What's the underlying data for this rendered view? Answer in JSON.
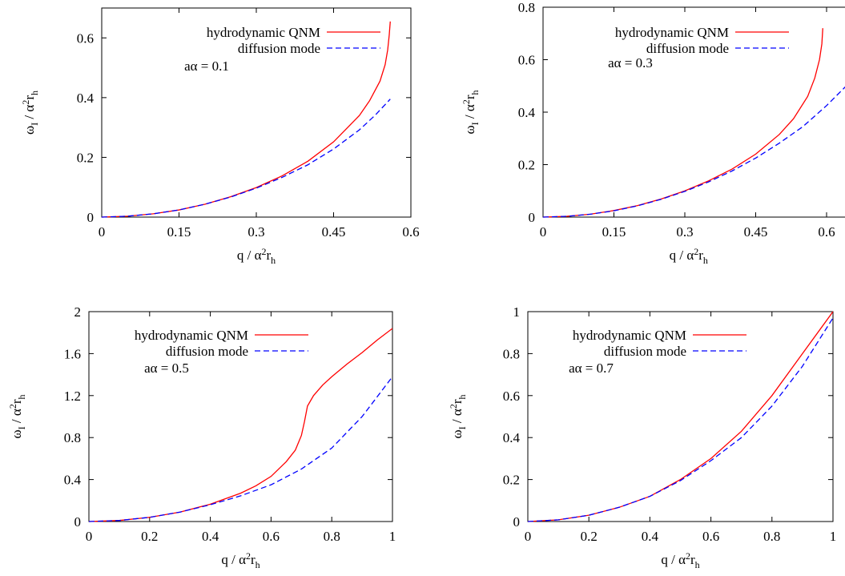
{
  "chart_data": [
    {
      "type": "line",
      "xlabel": [
        "q / α",
        "2",
        "r",
        "h"
      ],
      "ylabel": [
        "ω",
        "I",
        " / α",
        "2",
        "r",
        "h"
      ],
      "annotation": "aα = 0.1",
      "xlim": [
        0,
        0.6
      ],
      "xticks": [
        0,
        0.15,
        0.3,
        0.45,
        0.6
      ],
      "ylim": [
        0,
        0.7
      ],
      "yticks": [
        0,
        0.2,
        0.4,
        0.6
      ],
      "series": [
        {
          "name": "hydrodynamic QNM",
          "color": "#ff0000",
          "dash": false,
          "x": [
            0,
            0.05,
            0.1,
            0.15,
            0.2,
            0.25,
            0.3,
            0.35,
            0.4,
            0.45,
            0.5,
            0.52,
            0.54,
            0.55,
            0.555,
            0.558,
            0.56
          ],
          "values": [
            0,
            0.003,
            0.011,
            0.024,
            0.043,
            0.068,
            0.099,
            0.138,
            0.187,
            0.252,
            0.34,
            0.39,
            0.455,
            0.51,
            0.56,
            0.61,
            0.655
          ]
        },
        {
          "name": "diffusion mode",
          "color": "#0000ff",
          "dash": true,
          "x": [
            0,
            0.05,
            0.1,
            0.15,
            0.2,
            0.25,
            0.3,
            0.35,
            0.4,
            0.45,
            0.5,
            0.53,
            0.56
          ],
          "values": [
            0,
            0.003,
            0.011,
            0.024,
            0.043,
            0.067,
            0.097,
            0.133,
            0.175,
            0.228,
            0.292,
            0.34,
            0.395
          ]
        }
      ]
    },
    {
      "type": "line",
      "xlabel": [
        "q / α",
        "2",
        "r",
        "h"
      ],
      "ylabel": [
        "ω",
        "I",
        " / α",
        "2",
        "r",
        "h"
      ],
      "annotation": "aα = 0.3",
      "xlim": [
        0,
        0.65
      ],
      "xticks": [
        0,
        0.15,
        0.3,
        0.45,
        0.6
      ],
      "ylim": [
        0,
        0.8
      ],
      "yticks": [
        0,
        0.2,
        0.4,
        0.6,
        0.8
      ],
      "series": [
        {
          "name": "hydrodynamic QNM",
          "color": "#ff0000",
          "dash": false,
          "x": [
            0,
            0.05,
            0.1,
            0.15,
            0.2,
            0.25,
            0.3,
            0.35,
            0.4,
            0.45,
            0.5,
            0.53,
            0.56,
            0.575,
            0.585,
            0.59,
            0.592
          ],
          "values": [
            0,
            0.003,
            0.011,
            0.025,
            0.044,
            0.069,
            0.1,
            0.138,
            0.183,
            0.24,
            0.315,
            0.375,
            0.46,
            0.53,
            0.6,
            0.66,
            0.72
          ]
        },
        {
          "name": "diffusion mode",
          "color": "#0000ff",
          "dash": true,
          "x": [
            0,
            0.05,
            0.1,
            0.15,
            0.2,
            0.25,
            0.3,
            0.35,
            0.4,
            0.45,
            0.5,
            0.55,
            0.6,
            0.65
          ],
          "values": [
            0,
            0.003,
            0.011,
            0.024,
            0.043,
            0.068,
            0.098,
            0.134,
            0.176,
            0.225,
            0.282,
            0.345,
            0.425,
            0.515
          ]
        }
      ]
    },
    {
      "type": "line",
      "xlabel": [
        "q / α",
        "2",
        "r",
        "h"
      ],
      "ylabel": [
        "ω",
        "I",
        " / α",
        "2",
        "r",
        "h"
      ],
      "annotation": "aα = 0.5",
      "xlim": [
        0,
        1
      ],
      "xticks": [
        0,
        0.2,
        0.4,
        0.6,
        0.8,
        1
      ],
      "ylim": [
        0,
        2
      ],
      "yticks": [
        0,
        0.4,
        0.8,
        1.2,
        1.6,
        2
      ],
      "series": [
        {
          "name": "hydrodynamic QNM",
          "color": "#ff0000",
          "dash": false,
          "x": [
            0,
            0.1,
            0.2,
            0.3,
            0.4,
            0.5,
            0.55,
            0.6,
            0.65,
            0.68,
            0.7,
            0.71,
            0.72,
            0.74,
            0.77,
            0.8,
            0.85,
            0.9,
            0.95,
            1
          ],
          "values": [
            0,
            0.01,
            0.04,
            0.09,
            0.165,
            0.27,
            0.34,
            0.43,
            0.57,
            0.68,
            0.82,
            0.95,
            1.1,
            1.2,
            1.3,
            1.38,
            1.5,
            1.61,
            1.73,
            1.84
          ]
        },
        {
          "name": "diffusion mode",
          "color": "#0000ff",
          "dash": true,
          "x": [
            0,
            0.1,
            0.2,
            0.3,
            0.4,
            0.5,
            0.6,
            0.7,
            0.8,
            0.9,
            1
          ],
          "values": [
            0,
            0.01,
            0.04,
            0.09,
            0.16,
            0.245,
            0.35,
            0.5,
            0.7,
            1.0,
            1.38
          ]
        }
      ]
    },
    {
      "type": "line",
      "xlabel": [
        "q / α",
        "2",
        "r",
        "h"
      ],
      "ylabel": [
        "ω",
        "I",
        " / α",
        "2",
        "r",
        "h"
      ],
      "annotation": "aα = 0.7",
      "xlim": [
        0,
        1
      ],
      "xticks": [
        0,
        0.2,
        0.4,
        0.6,
        0.8,
        1
      ],
      "ylim": [
        0,
        1
      ],
      "yticks": [
        0,
        0.2,
        0.4,
        0.6,
        0.8,
        1
      ],
      "series": [
        {
          "name": "hydrodynamic QNM",
          "color": "#ff0000",
          "dash": false,
          "x": [
            0,
            0.1,
            0.2,
            0.3,
            0.4,
            0.5,
            0.6,
            0.7,
            0.8,
            0.9,
            1
          ],
          "values": [
            0,
            0.008,
            0.03,
            0.068,
            0.12,
            0.2,
            0.3,
            0.43,
            0.6,
            0.8,
            1.0
          ]
        },
        {
          "name": "diffusion mode",
          "color": "#0000ff",
          "dash": true,
          "x": [
            0,
            0.1,
            0.2,
            0.3,
            0.4,
            0.5,
            0.6,
            0.7,
            0.8,
            0.9,
            1
          ],
          "values": [
            0,
            0.008,
            0.03,
            0.068,
            0.12,
            0.195,
            0.29,
            0.4,
            0.55,
            0.74,
            0.97
          ]
        }
      ]
    }
  ]
}
